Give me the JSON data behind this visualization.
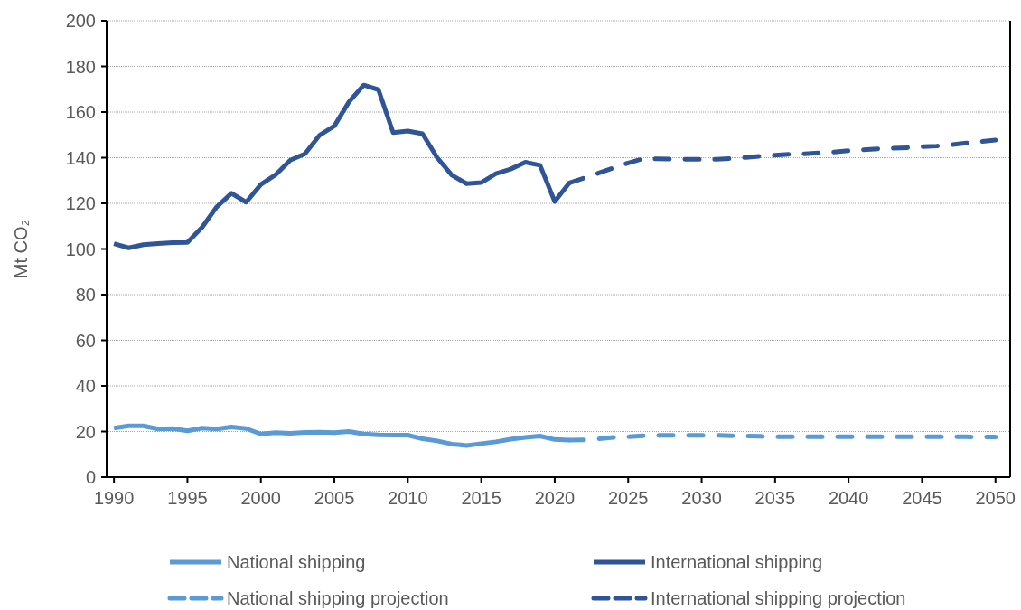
{
  "chart_data": {
    "type": "line",
    "ylabel": "Mt CO₂",
    "xlim": [
      1989.5,
      2051
    ],
    "xticks": [
      1990,
      1995,
      2000,
      2005,
      2010,
      2015,
      2020,
      2025,
      2030,
      2035,
      2040,
      2045,
      2050
    ],
    "ylim": [
      0,
      200
    ],
    "yticks": [
      0,
      20,
      40,
      60,
      80,
      100,
      120,
      140,
      160,
      180,
      200
    ],
    "grid": "y",
    "legend": "bottom",
    "marker": "none",
    "series": [
      {
        "name": "National shipping",
        "color": "#5b9bd5",
        "line_style": "solid",
        "x": [
          1990,
          1991,
          1992,
          1993,
          1994,
          1995,
          1996,
          1997,
          1998,
          1999,
          2000,
          2001,
          2002,
          2003,
          2004,
          2005,
          2006,
          2007,
          2008,
          2009,
          2010,
          2011,
          2012,
          2013,
          2014,
          2015,
          2016,
          2017,
          2018,
          2019,
          2020,
          2021
        ],
        "values": [
          21.5,
          22.5,
          22.5,
          21.1,
          21.3,
          20.3,
          21.5,
          21.1,
          22.0,
          21.3,
          18.9,
          19.5,
          19.2,
          19.6,
          19.7,
          19.5,
          20.0,
          18.9,
          18.5,
          18.4,
          18.4,
          16.8,
          15.9,
          14.5,
          13.9,
          14.7,
          15.5,
          16.6,
          17.4,
          18.0,
          16.5,
          16.2
        ]
      },
      {
        "name": "International shipping",
        "color": "#2f5597",
        "line_style": "solid",
        "x": [
          1990,
          1991,
          1992,
          1993,
          1994,
          1995,
          1996,
          1997,
          1998,
          1999,
          2000,
          2001,
          2002,
          2003,
          2004,
          2005,
          2006,
          2007,
          2008,
          2009,
          2010,
          2011,
          2012,
          2013,
          2014,
          2015,
          2016,
          2017,
          2018,
          2019,
          2020,
          2021
        ],
        "values": [
          102.3,
          100.5,
          101.9,
          102.4,
          102.8,
          102.9,
          109.5,
          118.5,
          124.4,
          120.5,
          128.3,
          132.5,
          138.9,
          141.7,
          149.9,
          153.9,
          164.5,
          171.8,
          169.8,
          151.0,
          151.7,
          150.5,
          140.0,
          132.3,
          128.6,
          129.1,
          133.0,
          135.0,
          138.0,
          136.7,
          120.8,
          129.0
        ]
      },
      {
        "name": "National shipping projection",
        "color": "#5b9bd5",
        "line_style": "dashed",
        "x": [
          2021,
          2022,
          2023,
          2024,
          2025,
          2026,
          2027,
          2028,
          2029,
          2030,
          2031,
          2032,
          2033,
          2034,
          2035,
          2036,
          2037,
          2038,
          2039,
          2040,
          2041,
          2042,
          2043,
          2044,
          2045,
          2046,
          2047,
          2048,
          2049,
          2050
        ],
        "values": [
          16.2,
          16.3,
          16.8,
          17.4,
          17.7,
          18.1,
          18.3,
          18.3,
          18.3,
          18.3,
          18.3,
          18.1,
          18.0,
          17.9,
          17.7,
          17.7,
          17.7,
          17.7,
          17.7,
          17.7,
          17.7,
          17.7,
          17.7,
          17.7,
          17.7,
          17.7,
          17.7,
          17.7,
          17.6,
          17.6
        ]
      },
      {
        "name": "International shipping projection",
        "color": "#2f5597",
        "line_style": "dashed",
        "x": [
          2021,
          2022,
          2023,
          2024,
          2025,
          2026,
          2027,
          2028,
          2029,
          2030,
          2031,
          2032,
          2033,
          2034,
          2035,
          2036,
          2037,
          2038,
          2039,
          2040,
          2041,
          2042,
          2043,
          2044,
          2045,
          2046,
          2047,
          2048,
          2049,
          2050
        ],
        "values": [
          129.0,
          131.1,
          133.3,
          135.5,
          137.7,
          139.5,
          139.5,
          139.4,
          139.3,
          139.3,
          139.3,
          139.7,
          140.1,
          140.7,
          141.1,
          141.5,
          141.7,
          142.1,
          142.5,
          143.1,
          143.5,
          143.9,
          144.1,
          144.4,
          144.8,
          145.1,
          145.7,
          146.4,
          147.1,
          147.7
        ]
      }
    ]
  }
}
